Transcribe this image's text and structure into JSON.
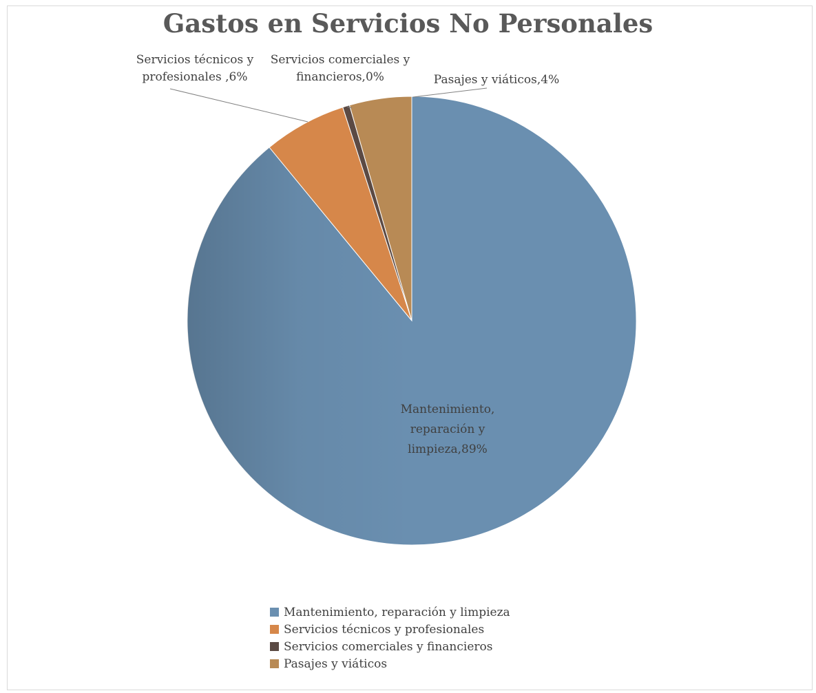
{
  "chart_data": {
    "type": "pie",
    "title": "Gastos en Servicios No Personales",
    "categories": [
      "Mantenimiento, reparación y limpieza",
      "Servicios técnicos y profesionales",
      "Servicios comerciales y financieros",
      "Pasajes y viáticos"
    ],
    "values": [
      89,
      6,
      0,
      4
    ],
    "slice_fractions": [
      0.895,
      0.06,
      0.005,
      0.045
    ],
    "colors": [
      "#6a8fb0",
      "#d6874a",
      "#5b4a44",
      "#b88a55"
    ],
    "data_labels": [
      [
        "Mantenimiento,",
        "reparación y",
        "limpieza,89%"
      ],
      [
        "Servicios técnicos y",
        "profesionales ,6%"
      ],
      [
        "Servicios comerciales y",
        "financieros,0%"
      ],
      [
        "Pasajes y viáticos,4%"
      ]
    ],
    "legend_position": "bottom"
  }
}
